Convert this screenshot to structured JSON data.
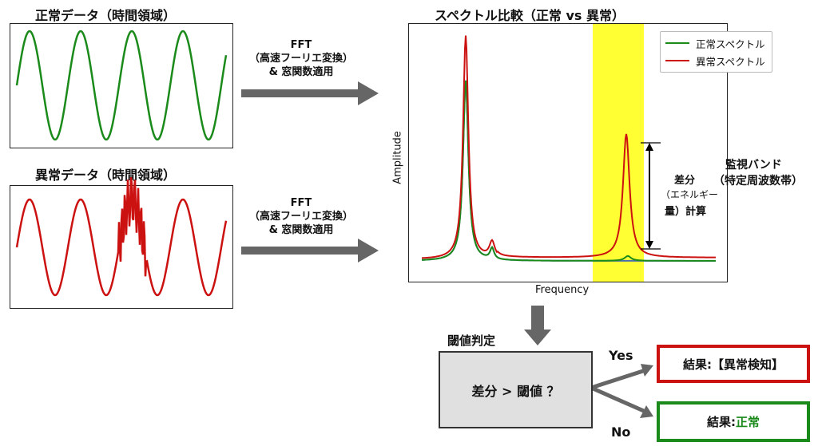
{
  "normal_panel": {
    "title": "正常データ（時間領域）"
  },
  "abnormal_panel": {
    "title": "異常データ（時間領域）"
  },
  "fft_top": {
    "line1": "FFT",
    "line2": "（高速フーリエ変換）",
    "line3": "& 窓関数適用"
  },
  "fft_bottom": {
    "line1": "FFT",
    "line2": "（高速フーリエ変換）",
    "line3": "& 窓関数適用"
  },
  "spectrum": {
    "title": "スペクトル比較（正常 vs 異常）",
    "xlabel": "Frequency",
    "ylabel": "Amplitude",
    "legend": [
      {
        "label": "正常スペクトル",
        "color": "#1a8a1a"
      },
      {
        "label": "異常スペクトル",
        "color": "#cc1111"
      }
    ],
    "band_label_line1": "監視バンド",
    "band_label_line2": "（特定周波数帯）",
    "diff_line1": "差分",
    "diff_line2": "（エネルギー",
    "diff_line3": "量）計算",
    "band_color": "#ffff33"
  },
  "threshold": {
    "title": "閾値判定",
    "condition": "差分 > 閾値 ？",
    "yes_label": "Yes",
    "no_label": "No"
  },
  "results": {
    "abnormal_prefix": "結果: ",
    "abnormal_value": "【異常検知】",
    "normal_prefix": "結果: ",
    "normal_value": "正常"
  },
  "colors": {
    "normal": "#1a8a1a",
    "abnormal": "#cc1111",
    "blue": "#4a6fb0",
    "arrow": "#666666",
    "box_fill": "#e0e0e0"
  }
}
